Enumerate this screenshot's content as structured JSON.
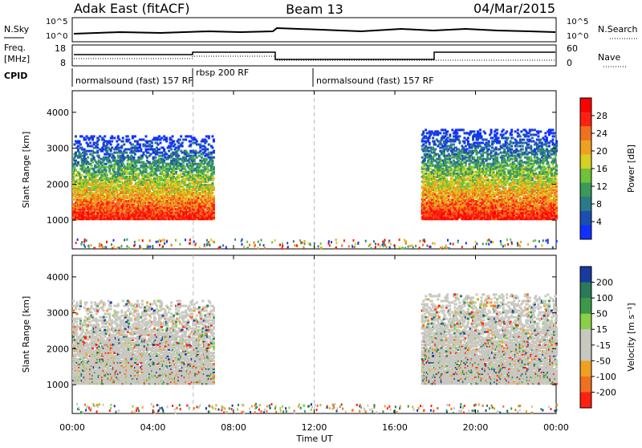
{
  "header": {
    "station": "Adak East (fitACF)",
    "beam": "Beam 13",
    "date": "04/Mar/2015"
  },
  "panels": {
    "sky": {
      "left_label": "N.Sky",
      "right_label": "N.Search",
      "left_ticks": [
        "10^5",
        "10^0"
      ],
      "right_ticks": [
        "10^5",
        "10^0"
      ]
    },
    "freq": {
      "left_label_1": "Freq.",
      "left_label_2": "[MHz]",
      "right_label": "Nave",
      "left_ticks": [
        "18",
        "8"
      ],
      "right_ticks": [
        "60",
        "0"
      ]
    },
    "cpid": {
      "label": "CPID",
      "segments": [
        "normalsound (fast) 157 RF",
        "rbsp 200 RF",
        "normalsound (fast) 157 RF"
      ]
    }
  },
  "chart_data": [
    {
      "type": "heatmap",
      "title": "",
      "xlabel": "Time UT",
      "ylabel": "Slant Range [km]",
      "x_ticks": [
        "00:00",
        "04:00",
        "08:00",
        "12:00",
        "16:00",
        "20:00",
        "00:00"
      ],
      "y_ticks": [
        1000,
        2000,
        3000,
        4000
      ],
      "ylim": [
        200,
        4600
      ],
      "colorbar": {
        "label": "Power [dB]",
        "ticks": [
          4,
          8,
          12,
          16,
          20,
          24,
          28
        ],
        "colors": [
          "#1030ff",
          "#1a4fb0",
          "#2b7a8a",
          "#3a9a5a",
          "#6fc23a",
          "#d8d020",
          "#f0a020",
          "#f07020",
          "#ff2010",
          "#ff0000"
        ]
      },
      "echo_regions": [
        {
          "t_start_h": 0.0,
          "t_end_h": 7.0,
          "range_km": [
            1000,
            3300
          ]
        },
        {
          "t_start_h": 17.3,
          "t_end_h": 24.0,
          "range_km": [
            1000,
            3500
          ]
        }
      ]
    },
    {
      "type": "heatmap",
      "title": "",
      "xlabel": "Time UT",
      "ylabel": "Slant Range [km]",
      "x_ticks": [
        "00:00",
        "04:00",
        "08:00",
        "12:00",
        "16:00",
        "20:00",
        "00:00"
      ],
      "y_ticks": [
        1000,
        2000,
        3000,
        4000
      ],
      "ylim": [
        200,
        4600
      ],
      "colorbar": {
        "label": "Velocity [m s⁻¹]",
        "ticks": [
          200,
          100,
          50,
          15,
          -15,
          -50,
          -100,
          -200
        ],
        "colors": [
          "#1a3aa0",
          "#2a7a5a",
          "#3a9a4a",
          "#8ad04a",
          "#c8c8c0",
          "#c8c8c0",
          "#f0a020",
          "#f07020",
          "#ff2010"
        ]
      },
      "echo_regions": [
        {
          "t_start_h": 0.0,
          "t_end_h": 7.0,
          "range_km": [
            1000,
            3300
          ]
        },
        {
          "t_start_h": 17.3,
          "t_end_h": 24.0,
          "range_km": [
            1000,
            3500
          ]
        }
      ]
    }
  ]
}
